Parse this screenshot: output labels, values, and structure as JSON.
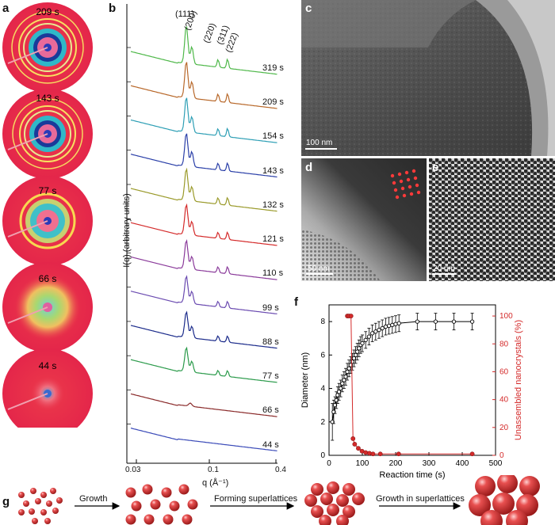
{
  "panels": {
    "a": "a",
    "b": "b",
    "c": "c",
    "d": "d",
    "e": "e",
    "f": "f",
    "g": "g"
  },
  "panel_a": {
    "times": [
      "209 s",
      "143 s",
      "77 s",
      "66 s",
      "44 s"
    ]
  },
  "panel_b": {
    "peaks": [
      "(111)",
      "(200)",
      "(220)",
      "(311)",
      "(222)"
    ],
    "times": [
      "319 s",
      "209 s",
      "154 s",
      "143 s",
      "132 s",
      "121 s",
      "110 s",
      "99 s",
      "88 s",
      "77 s",
      "66 s",
      "44 s"
    ],
    "ylabel": "I(q) (arbitrary units)",
    "xlabel": "q (Å⁻¹)",
    "xticks": [
      "0.03",
      "0.1",
      "0.4"
    ],
    "colors": [
      "#4fb84a",
      "#b8682a",
      "#2e9fb5",
      "#2a3fa8",
      "#9a9a2a",
      "#d42a2a",
      "#8a3a9a",
      "#6a4ab0",
      "#1a2a8a",
      "#2a9a4a",
      "#8a2a2a",
      "#3a4ab8"
    ]
  },
  "panel_c": {
    "scale": "100 nm"
  },
  "panel_d": {
    "scale": "50 nm"
  },
  "panel_e": {
    "scale": "20 nm"
  },
  "panel_g": {
    "steps": [
      "Growth",
      "Forming superlattices",
      "Growth in superlattices"
    ]
  },
  "chart_data": {
    "type": "scatter",
    "xlabel": "Reaction time (s)",
    "ylabel": "Diameter (nm)",
    "y2label": "Unassembled nanocrystals (%)",
    "xlim": [
      0,
      500
    ],
    "ylim": [
      0,
      9
    ],
    "y2lim": [
      0,
      108
    ],
    "xticks": [
      0,
      100,
      200,
      300,
      400,
      500
    ],
    "yticks": [
      0,
      2,
      4,
      6,
      8
    ],
    "y2ticks": [
      0,
      20,
      40,
      60,
      80,
      100
    ],
    "series": [
      {
        "color": "#000000",
        "x": [
          10,
          14,
          18,
          22,
          26,
          30,
          35,
          40,
          45,
          50,
          55,
          60,
          65,
          70,
          75,
          80,
          85,
          90,
          95,
          100,
          110,
          120,
          130,
          140,
          150,
          160,
          170,
          180,
          190,
          200,
          210,
          265,
          320,
          375,
          430
        ],
        "y": [
          2.0,
          2.6,
          3.0,
          3.3,
          3.6,
          3.8,
          4.0,
          4.3,
          4.5,
          4.7,
          5.0,
          5.2,
          5.4,
          5.6,
          5.8,
          6.0,
          6.2,
          6.4,
          6.6,
          6.7,
          6.9,
          7.1,
          7.3,
          7.4,
          7.5,
          7.6,
          7.7,
          7.75,
          7.8,
          7.85,
          7.9,
          8.0,
          8.0,
          8.0,
          8.0
        ],
        "err": [
          1.1,
          0.7,
          0.5,
          0.5,
          0.5,
          0.5,
          0.5,
          0.5,
          0.5,
          0.5,
          0.5,
          0.5,
          0.5,
          0.5,
          0.5,
          0.5,
          0.5,
          0.5,
          0.5,
          0.5,
          0.5,
          0.5,
          0.5,
          0.5,
          0.5,
          0.5,
          0.5,
          0.5,
          0.5,
          0.5,
          0.5,
          0.5,
          0.5,
          0.5,
          0.5
        ]
      },
      {
        "color": "#d42a2a",
        "axis": "right",
        "x": [
          55,
          60,
          66,
          72,
          77,
          88,
          99,
          110,
          121,
          132,
          154,
          209,
          430
        ],
        "y": [
          100,
          100,
          100,
          12,
          8,
          5,
          3,
          2,
          1.5,
          1,
          1,
          1,
          1
        ]
      }
    ]
  }
}
